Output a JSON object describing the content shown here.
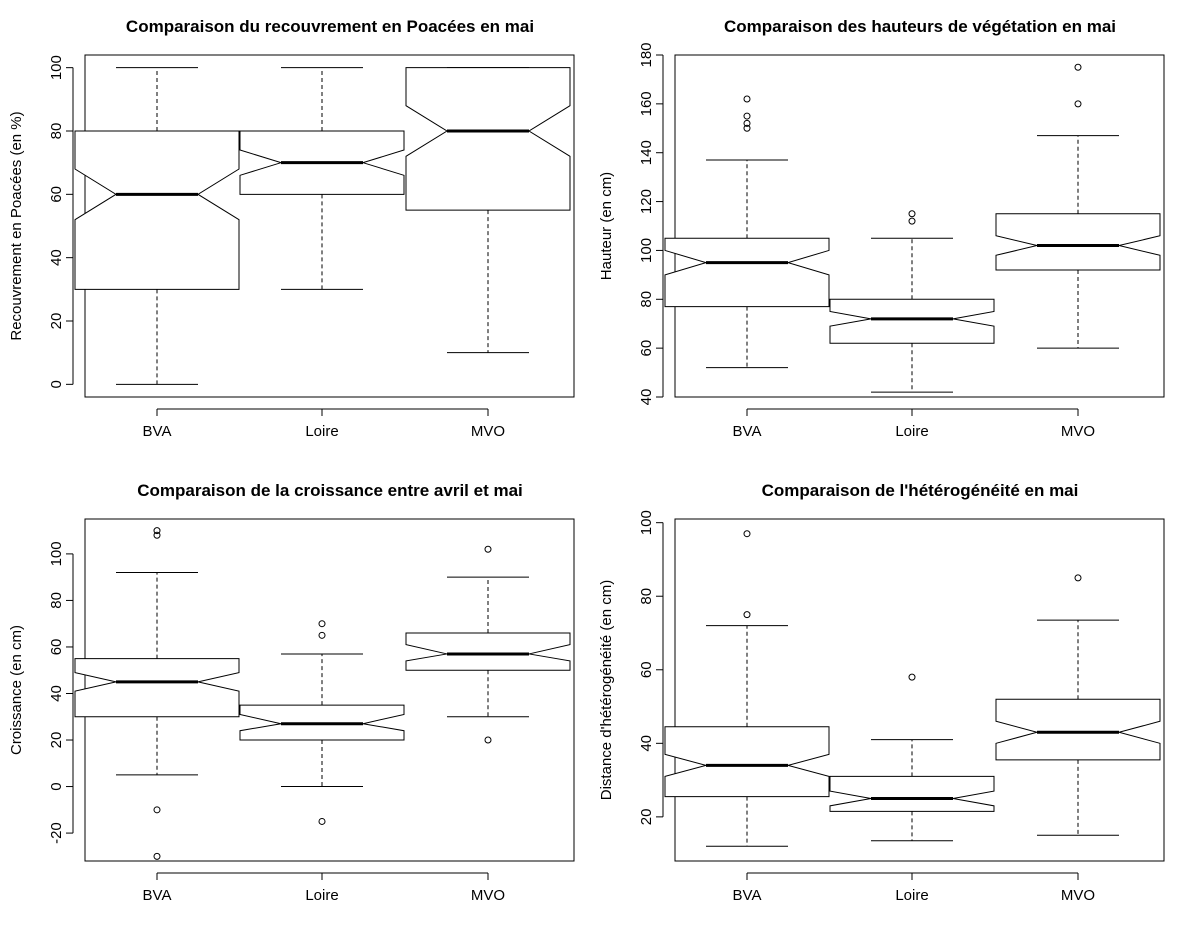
{
  "chart_data": [
    {
      "type": "boxplot",
      "notched": true,
      "title": "Comparaison du recouvrement en Poacées en mai",
      "xlabel": "",
      "ylabel": "Recouvrement en Poacées (en %)",
      "ylim": [
        -4,
        104
      ],
      "yticks": [
        0,
        20,
        40,
        60,
        80,
        100
      ],
      "categories": [
        "BVA",
        "Loire",
        "MVO"
      ],
      "boxes": [
        {
          "name": "BVA",
          "whisker_low": 0,
          "q1": 30,
          "median": 60,
          "q3": 80,
          "whisker_high": 100,
          "notch_low": 52,
          "notch_high": 68,
          "outliers": []
        },
        {
          "name": "Loire",
          "whisker_low": 30,
          "q1": 60,
          "median": 70,
          "q3": 80,
          "whisker_high": 100,
          "notch_low": 66,
          "notch_high": 74,
          "outliers": []
        },
        {
          "name": "MVO",
          "whisker_low": 10,
          "q1": 55,
          "median": 80,
          "q3": 100,
          "whisker_high": 100,
          "notch_low": 72,
          "notch_high": 88,
          "outliers": []
        }
      ]
    },
    {
      "type": "boxplot",
      "notched": true,
      "title": "Comparaison des hauteurs de végétation en mai",
      "xlabel": "",
      "ylabel": "Hauteur (en cm)",
      "ylim": [
        40,
        180
      ],
      "yticks": [
        40,
        60,
        80,
        100,
        120,
        140,
        160,
        180
      ],
      "categories": [
        "BVA",
        "Loire",
        "MVO"
      ],
      "boxes": [
        {
          "name": "BVA",
          "whisker_low": 52,
          "q1": 77,
          "median": 95,
          "q3": 105,
          "whisker_high": 137,
          "notch_low": 90,
          "notch_high": 100,
          "outliers": [
            150,
            152,
            155,
            162
          ]
        },
        {
          "name": "Loire",
          "whisker_low": 42,
          "q1": 62,
          "median": 72,
          "q3": 80,
          "whisker_high": 105,
          "notch_low": 69,
          "notch_high": 75,
          "outliers": [
            112,
            115
          ]
        },
        {
          "name": "MVO",
          "whisker_low": 60,
          "q1": 92,
          "median": 102,
          "q3": 115,
          "whisker_high": 147,
          "notch_low": 98,
          "notch_high": 106,
          "outliers": [
            160,
            175
          ]
        }
      ]
    },
    {
      "type": "boxplot",
      "notched": true,
      "title": "Comparaison de la croissance entre avril et mai",
      "xlabel": "",
      "ylabel": "Croissance (en cm)",
      "ylim": [
        -32,
        115
      ],
      "yticks": [
        -20,
        0,
        20,
        40,
        60,
        80,
        100
      ],
      "categories": [
        "BVA",
        "Loire",
        "MVO"
      ],
      "boxes": [
        {
          "name": "BVA",
          "whisker_low": 5,
          "q1": 30,
          "median": 45,
          "q3": 55,
          "whisker_high": 92,
          "notch_low": 41,
          "notch_high": 49,
          "outliers": [
            -30,
            -10,
            108,
            110
          ]
        },
        {
          "name": "Loire",
          "whisker_low": 0,
          "q1": 20,
          "median": 27,
          "q3": 35,
          "whisker_high": 57,
          "notch_low": 24,
          "notch_high": 31,
          "outliers": [
            -15,
            65,
            70
          ]
        },
        {
          "name": "MVO",
          "whisker_low": 30,
          "q1": 50,
          "median": 57,
          "q3": 66,
          "whisker_high": 90,
          "notch_low": 54,
          "notch_high": 61,
          "outliers": [
            20,
            102
          ]
        }
      ]
    },
    {
      "type": "boxplot",
      "notched": true,
      "title": "Comparaison de l'hétérogénéité en mai",
      "xlabel": "",
      "ylabel": "Distance d'hétérogénéité (en cm)",
      "ylim": [
        8,
        101
      ],
      "yticks": [
        20,
        40,
        60,
        80,
        100
      ],
      "categories": [
        "BVA",
        "Loire",
        "MVO"
      ],
      "boxes": [
        {
          "name": "BVA",
          "whisker_low": 12,
          "q1": 25.5,
          "median": 34,
          "q3": 44.5,
          "whisker_high": 72,
          "notch_low": 31,
          "notch_high": 37,
          "outliers": [
            75,
            97
          ]
        },
        {
          "name": "Loire",
          "whisker_low": 13.5,
          "q1": 21.5,
          "median": 25,
          "q3": 31,
          "whisker_high": 41,
          "notch_low": 23,
          "notch_high": 27,
          "outliers": [
            58
          ]
        },
        {
          "name": "MVO",
          "whisker_low": 15,
          "q1": 35.5,
          "median": 43,
          "q3": 52,
          "whisker_high": 73.5,
          "notch_low": 40,
          "notch_high": 46,
          "outliers": [
            85
          ]
        }
      ]
    }
  ]
}
